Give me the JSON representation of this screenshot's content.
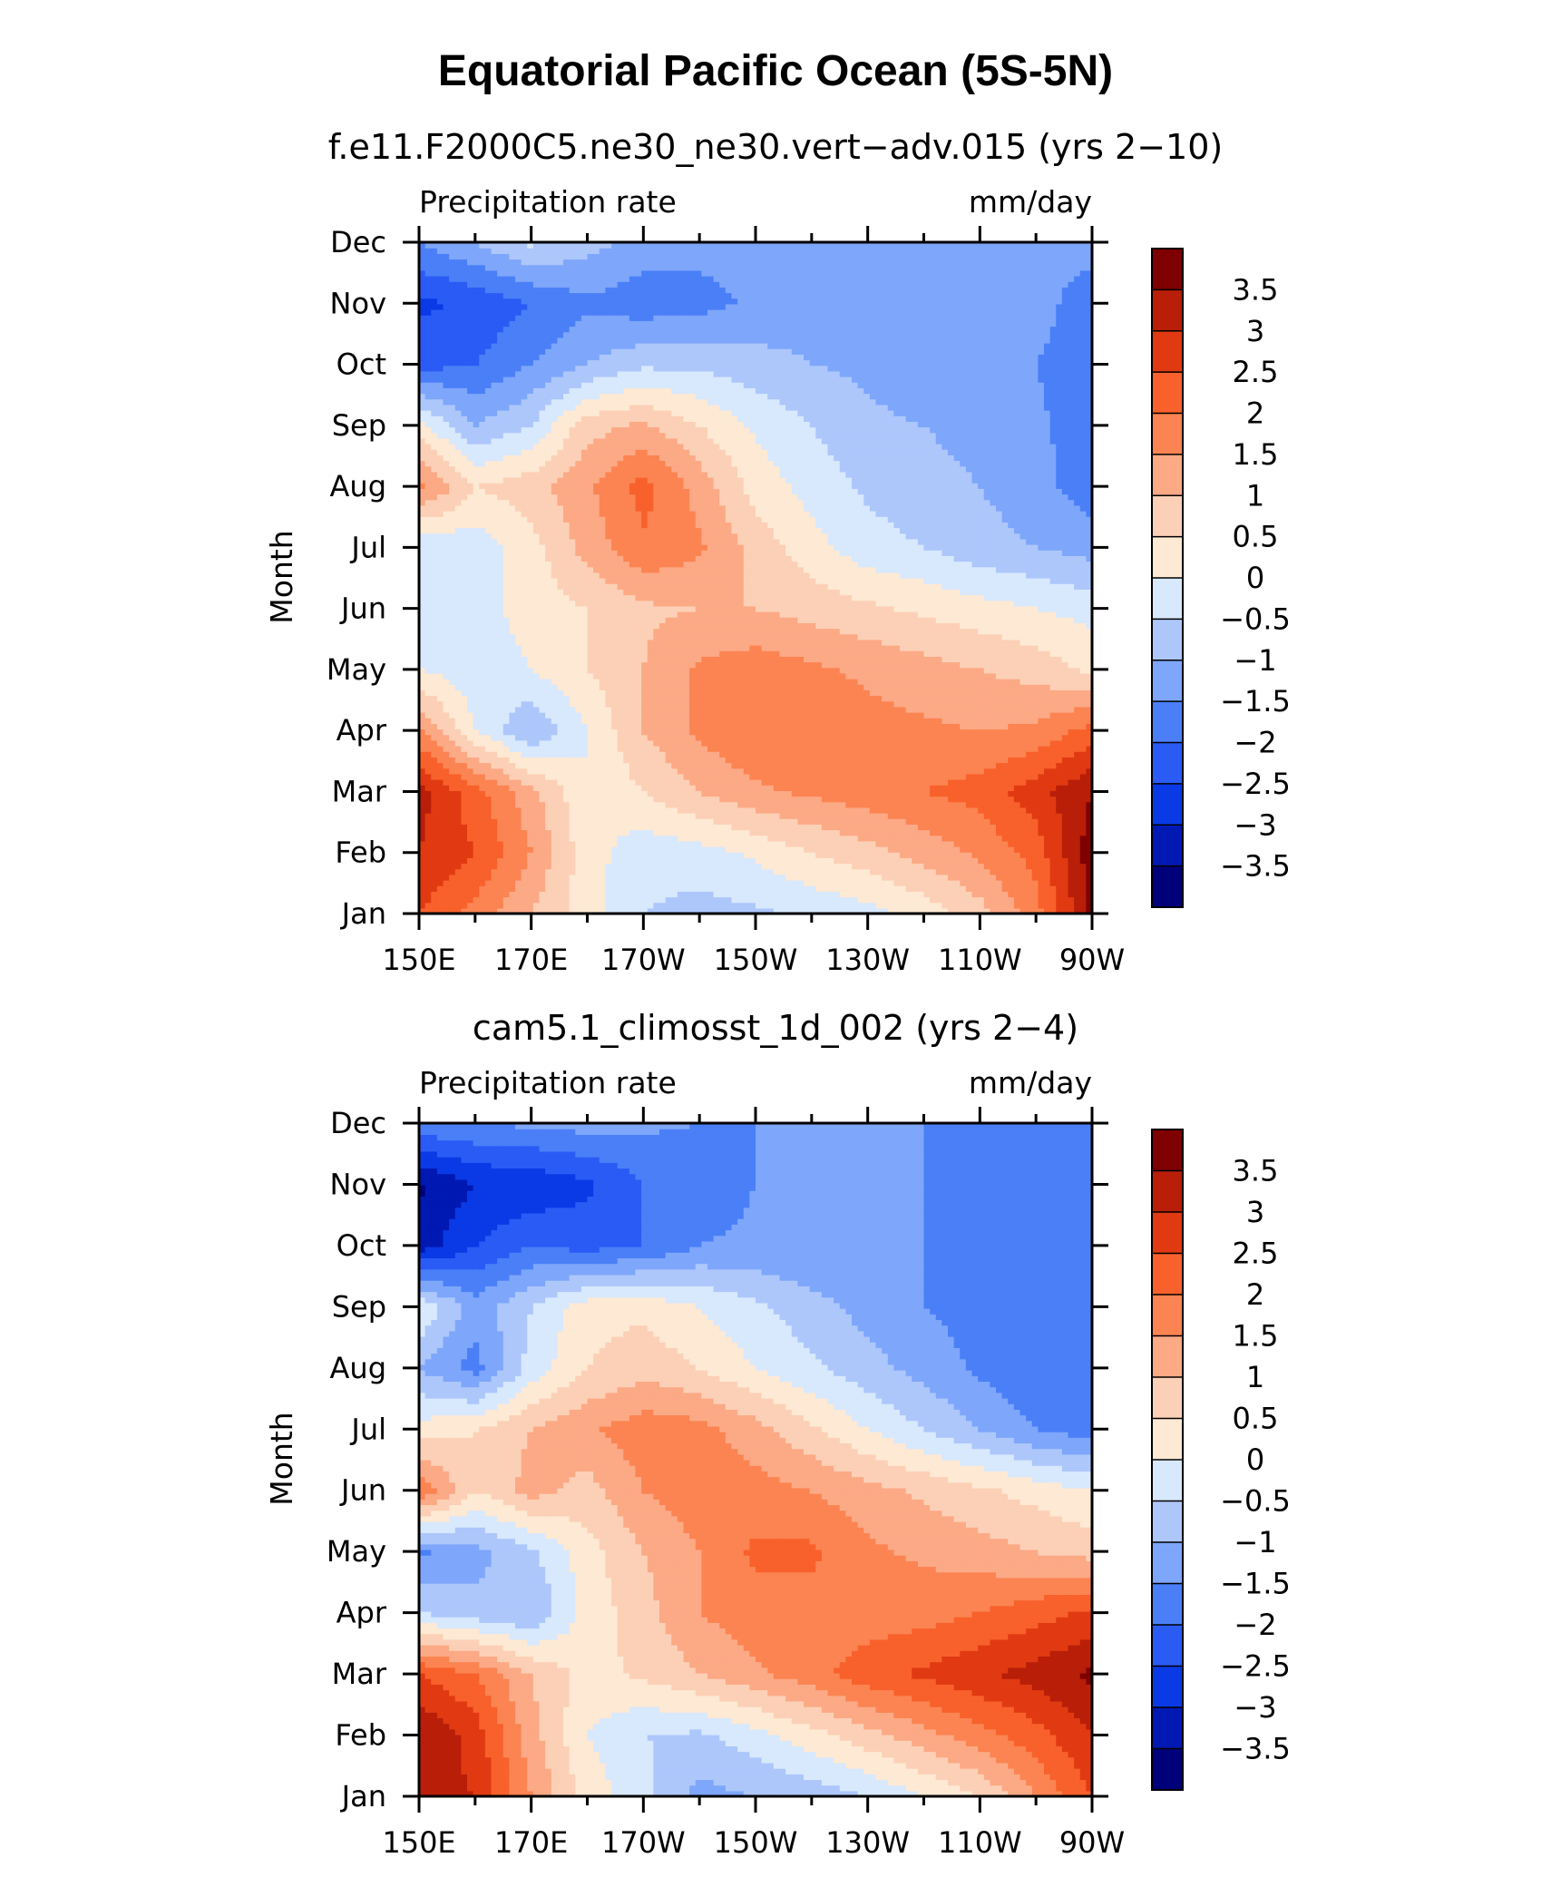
{
  "title": "Equatorial Pacific Ocean (5S-5N)",
  "colors": [
    "#00007a",
    "#0019b3",
    "#0a3ae6",
    "#2a5bf5",
    "#4a7ff7",
    "#7ea6fa",
    "#adc7fb",
    "#d8e8fd",
    "#fde9d4",
    "#fcd0b6",
    "#fca986",
    "#fb8452",
    "#f8612b",
    "#e13a12",
    "#b81e08",
    "#7e0000"
  ],
  "chart_data": [
    {
      "type": "heatmap",
      "panel_title": "f.e11.F2000C5.ne30_ne30.vert−adv.015 (yrs 2−10)",
      "left_label": "Precipitation rate",
      "right_label": "mm/day",
      "ylabel": "Month",
      "x_ticks": [
        "150E",
        "170E",
        "170W",
        "150W",
        "130W",
        "110W",
        "90W"
      ],
      "y_ticks": [
        "Jan",
        "Feb",
        "Mar",
        "Apr",
        "May",
        "Jun",
        "Jul",
        "Aug",
        "Sep",
        "Oct",
        "Nov",
        "Dec"
      ],
      "colorbar_labels": [
        "3.5",
        "3",
        "2.5",
        "2",
        "1.5",
        "1",
        "0.5",
        "0",
        "−0.5",
        "−1",
        "−1.5",
        "−2",
        "−2.5",
        "−3",
        "−3.5"
      ],
      "levels": [
        -3.5,
        -3,
        -2.5,
        -2,
        -1.5,
        -1,
        -0.5,
        0,
        0.5,
        1,
        1.5,
        2,
        2.5,
        3,
        3.5
      ],
      "lon": [
        150,
        160,
        170,
        180,
        190,
        200,
        210,
        220,
        230,
        240,
        250,
        260,
        270
      ],
      "months": [
        "Jan",
        "Feb",
        "Mar",
        "Apr",
        "May",
        "Jun",
        "Jul",
        "Aug",
        "Sep",
        "Oct",
        "Nov",
        "Dec"
      ],
      "values": [
        [
          2.5,
          1.8,
          1.0,
          0.2,
          -0.5,
          -0.7,
          -0.6,
          -0.4,
          -0.2,
          0.2,
          0.8,
          1.8,
          3.6
        ],
        [
          3.0,
          2.5,
          1.5,
          0.2,
          -0.3,
          -0.2,
          0.1,
          0.5,
          0.8,
          1.2,
          1.6,
          2.2,
          3.8
        ],
        [
          3.2,
          2.2,
          1.2,
          0.0,
          0.5,
          1.0,
          1.4,
          1.6,
          1.8,
          2.0,
          2.2,
          2.8,
          3.5
        ],
        [
          1.6,
          0.0,
          -1.0,
          0.0,
          1.0,
          1.6,
          2.0,
          1.8,
          1.7,
          1.6,
          1.5,
          1.6,
          2.2
        ],
        [
          0.0,
          -0.3,
          0.0,
          0.5,
          1.0,
          1.6,
          1.8,
          1.6,
          1.4,
          1.2,
          1.0,
          0.8,
          0.4
        ],
        [
          -0.5,
          -0.2,
          0.2,
          0.5,
          0.9,
          1.0,
          1.0,
          0.8,
          0.6,
          0.4,
          0.2,
          0.0,
          -0.2
        ],
        [
          -0.5,
          -0.3,
          0.3,
          1.2,
          1.9,
          1.6,
          0.8,
          0.2,
          -0.3,
          -0.5,
          -0.8,
          -1.0,
          -1.2
        ],
        [
          1.7,
          0.5,
          0.8,
          1.4,
          2.2,
          1.3,
          0.3,
          -0.2,
          -0.6,
          -0.8,
          -1.0,
          -1.3,
          -1.8
        ],
        [
          0.2,
          -1.0,
          -0.5,
          0.8,
          1.1,
          0.5,
          -0.1,
          -0.5,
          -0.9,
          -1.0,
          -1.2,
          -1.4,
          -1.8
        ],
        [
          -2.2,
          -2.0,
          -1.5,
          -1.0,
          -0.6,
          -0.6,
          -0.8,
          -1.0,
          -1.1,
          -1.3,
          -1.5,
          -1.5,
          -1.8
        ],
        [
          -2.6,
          -2.4,
          -2.0,
          -1.6,
          -1.8,
          -1.7,
          -1.4,
          -1.2,
          -1.2,
          -1.3,
          -1.3,
          -1.3,
          -1.8
        ],
        [
          -1.5,
          -1.0,
          -0.4,
          -0.8,
          -1.2,
          -1.3,
          -1.3,
          -1.3,
          -1.3,
          -1.3,
          -1.3,
          -1.3,
          -1.3
        ]
      ]
    },
    {
      "type": "heatmap",
      "panel_title": "cam5.1_climosst_1d_002 (yrs 2−4)",
      "left_label": "Precipitation rate",
      "right_label": "mm/day",
      "ylabel": "Month",
      "x_ticks": [
        "150E",
        "170E",
        "170W",
        "150W",
        "130W",
        "110W",
        "90W"
      ],
      "y_ticks": [
        "Jan",
        "Feb",
        "Mar",
        "Apr",
        "May",
        "Jun",
        "Jul",
        "Aug",
        "Sep",
        "Oct",
        "Nov",
        "Dec"
      ],
      "colorbar_labels": [
        "3.5",
        "3",
        "2.5",
        "2",
        "1.5",
        "1",
        "0.5",
        "0",
        "−0.5",
        "−1",
        "−1.5",
        "−2",
        "−2.5",
        "−3",
        "−3.5"
      ],
      "levels": [
        -3.5,
        -3,
        -2.5,
        -2,
        -1.5,
        -1,
        -0.5,
        0,
        0.5,
        1,
        1.5,
        2,
        2.5,
        3,
        3.5
      ],
      "lon": [
        150,
        160,
        170,
        180,
        190,
        200,
        210,
        220,
        230,
        240,
        250,
        260,
        270
      ],
      "months": [
        "Jan",
        "Feb",
        "Mar",
        "Apr",
        "May",
        "Jun",
        "Jul",
        "Aug",
        "Sep",
        "Oct",
        "Nov",
        "Dec"
      ],
      "values": [
        [
          3.2,
          3.0,
          1.5,
          0.3,
          -0.3,
          -1.2,
          -1.0,
          -0.8,
          -0.5,
          0.0,
          0.5,
          1.5,
          2.5
        ],
        [
          3.5,
          2.8,
          1.2,
          0.0,
          -0.5,
          -0.6,
          -0.2,
          0.3,
          0.8,
          1.3,
          1.8,
          2.3,
          3.0
        ],
        [
          2.5,
          2.0,
          1.0,
          0.3,
          0.6,
          1.0,
          1.4,
          1.8,
          2.3,
          2.6,
          2.9,
          3.2,
          3.6
        ],
        [
          -0.5,
          -0.8,
          -1.0,
          0.2,
          0.8,
          1.5,
          1.8,
          1.8,
          1.7,
          1.8,
          2.0,
          2.3,
          2.6
        ],
        [
          -1.6,
          -1.2,
          -0.6,
          0.3,
          1.0,
          1.5,
          2.1,
          2.1,
          1.6,
          1.4,
          1.2,
          1.0,
          0.8
        ],
        [
          2.0,
          0.5,
          1.2,
          0.8,
          1.5,
          1.8,
          1.7,
          1.5,
          1.2,
          0.9,
          0.6,
          0.3,
          0.0
        ],
        [
          0.2,
          0.5,
          1.0,
          1.4,
          1.8,
          1.7,
          1.2,
          0.6,
          0.0,
          -0.5,
          -1.0,
          -1.5,
          -1.8
        ],
        [
          -1.0,
          -1.7,
          -0.3,
          0.5,
          0.8,
          0.5,
          0.0,
          -0.4,
          -0.8,
          -1.2,
          -1.6,
          -2.0,
          -2.0
        ],
        [
          0.0,
          -1.3,
          -0.5,
          0.3,
          0.4,
          0.0,
          -0.4,
          -0.8,
          -1.2,
          -1.5,
          -1.7,
          -2.0,
          -2.0
        ],
        [
          -3.3,
          -2.5,
          -2.0,
          -2.2,
          -2.0,
          -1.5,
          -1.4,
          -1.5,
          -1.5,
          -1.5,
          -1.6,
          -1.9,
          -2.0
        ],
        [
          -3.6,
          -3.0,
          -2.9,
          -2.6,
          -2.0,
          -1.8,
          -1.5,
          -1.5,
          -1.5,
          -1.5,
          -1.6,
          -1.9,
          -2.0
        ],
        [
          -1.6,
          -1.5,
          -1.4,
          -1.3,
          -1.4,
          -1.5,
          -1.5,
          -1.5,
          -1.5,
          -1.5,
          -1.5,
          -1.5,
          -1.5
        ]
      ]
    }
  ]
}
